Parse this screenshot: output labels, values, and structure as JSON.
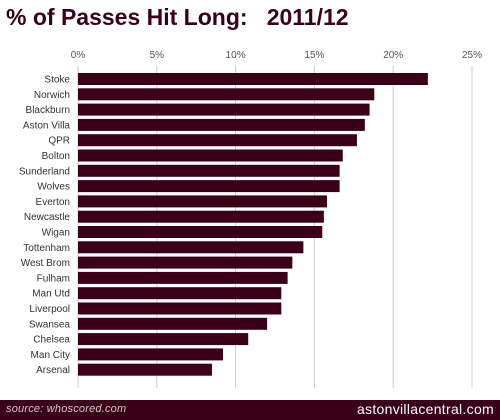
{
  "title": {
    "prefix": "%",
    "text": " of Passes Hit Long:   2011/12"
  },
  "footer": {
    "source": "source: whoscored.com",
    "site": "astonvillacentral.com"
  },
  "colors": {
    "bar": "#3a0018",
    "title": "#3a0018",
    "footer_bg": "#3a0018",
    "grid": "#d6c9cf"
  },
  "chart_data": {
    "type": "bar",
    "orientation": "horizontal",
    "x_axis_position": "top",
    "grid": true,
    "xlim": [
      0,
      25
    ],
    "xticks": [
      "0%",
      "5%",
      "10%",
      "15%",
      "20%",
      "25%"
    ],
    "categories": [
      "Stoke",
      "Norwich",
      "Blackburn",
      "Aston Villa",
      "QPR",
      "Bolton",
      "Sunderland",
      "Wolves",
      "Everton",
      "Newcastle",
      "Wigan",
      "Tottenham",
      "West Brom",
      "Fulham",
      "Man Utd",
      "Liverpool",
      "Swansea",
      "Chelsea",
      "Man City",
      "Arsenal"
    ],
    "values": [
      22.2,
      18.8,
      18.5,
      18.2,
      17.7,
      16.8,
      16.6,
      16.6,
      15.8,
      15.6,
      15.5,
      14.3,
      13.6,
      13.3,
      12.9,
      12.9,
      12.0,
      10.8,
      9.2,
      8.5
    ]
  }
}
